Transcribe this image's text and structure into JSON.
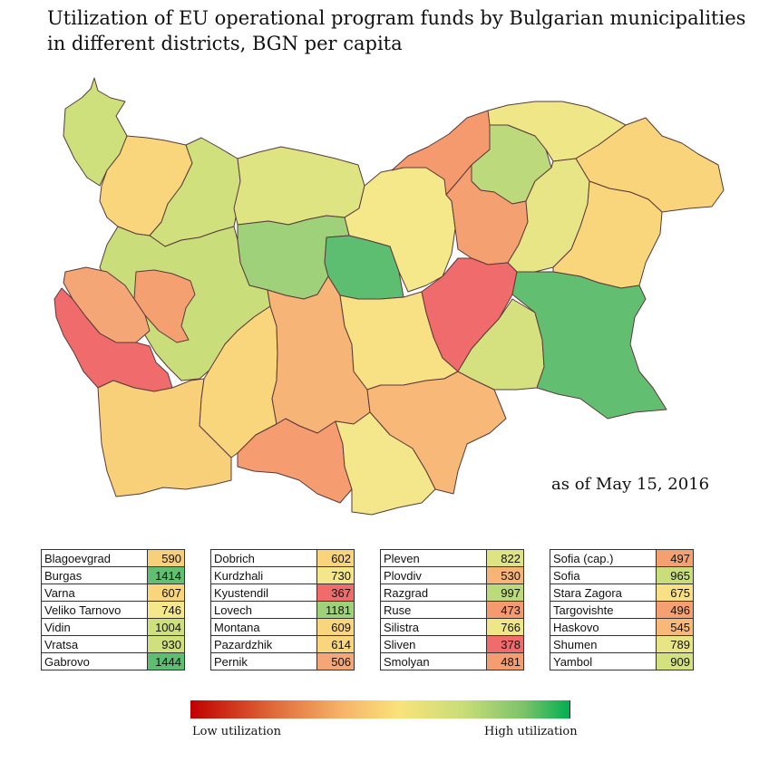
{
  "title_line1": "Utilization of EU operational program funds by Bulgarian municipalities",
  "title_line2": "in different districts, BGN per capita",
  "as_of": "as of May 15, 2016",
  "legend": {
    "low": "Low utilization",
    "high": "High utilization"
  },
  "colors": {
    "very_low": "#f06b6b",
    "low": "#f5a070",
    "mid_low": "#f9d07a",
    "mid": "#f4e88a",
    "mid_high": "#cfe07d",
    "high": "#9fd07a",
    "very_high": "#62bf72"
  },
  "table": {
    "col1": [
      {
        "name": "Blagoevgrad",
        "value": "590",
        "color": "#f9d07a"
      },
      {
        "name": "Burgas",
        "value": "1414",
        "color": "#62bf72"
      },
      {
        "name": "Varna",
        "value": "607",
        "color": "#f9d57c"
      },
      {
        "name": "Veliko Tarnovo",
        "value": "746",
        "color": "#f4e88a"
      },
      {
        "name": "Vidin",
        "value": "1004",
        "color": "#cde07c"
      },
      {
        "name": "Vratsa",
        "value": "930",
        "color": "#cfe07d"
      },
      {
        "name": "Gabrovo",
        "value": "1444",
        "color": "#5dbd70"
      }
    ],
    "col2": [
      {
        "name": "Dobrich",
        "value": "602",
        "color": "#f9d47b"
      },
      {
        "name": "Kurdzhali",
        "value": "730",
        "color": "#f4e68a"
      },
      {
        "name": "Kyustendil",
        "value": "367",
        "color": "#f06b6b"
      },
      {
        "name": "Lovech",
        "value": "1181",
        "color": "#9fd07a"
      },
      {
        "name": "Montana",
        "value": "609",
        "color": "#f9d57c"
      },
      {
        "name": "Pazardzhik",
        "value": "614",
        "color": "#f9d67c"
      },
      {
        "name": "Pernik",
        "value": "506",
        "color": "#f5a676"
      }
    ],
    "col3": [
      {
        "name": "Pleven",
        "value": "822",
        "color": "#dfe483"
      },
      {
        "name": "Plovdiv",
        "value": "530",
        "color": "#f6b477"
      },
      {
        "name": "Razgrad",
        "value": "997",
        "color": "#bcd97b"
      },
      {
        "name": "Ruse",
        "value": "473",
        "color": "#f59a6e"
      },
      {
        "name": "Silistra",
        "value": "766",
        "color": "#efe787"
      },
      {
        "name": "Sliven",
        "value": "378",
        "color": "#f06b6b"
      },
      {
        "name": "Smolyan",
        "value": "481",
        "color": "#f59c70"
      }
    ],
    "col4": [
      {
        "name": "Sofia (cap.)",
        "value": "497",
        "color": "#f5a070"
      },
      {
        "name": "Sofia",
        "value": "965",
        "color": "#c9dd7a"
      },
      {
        "name": "Stara Zagora",
        "value": "675",
        "color": "#f8e085"
      },
      {
        "name": "Targovishte",
        "value": "496",
        "color": "#f5a070"
      },
      {
        "name": "Haskovo",
        "value": "545",
        "color": "#f7b878"
      },
      {
        "name": "Shumen",
        "value": "789",
        "color": "#e8e586"
      },
      {
        "name": "Yambol",
        "value": "909",
        "color": "#d4e17e"
      }
    ]
  }
}
